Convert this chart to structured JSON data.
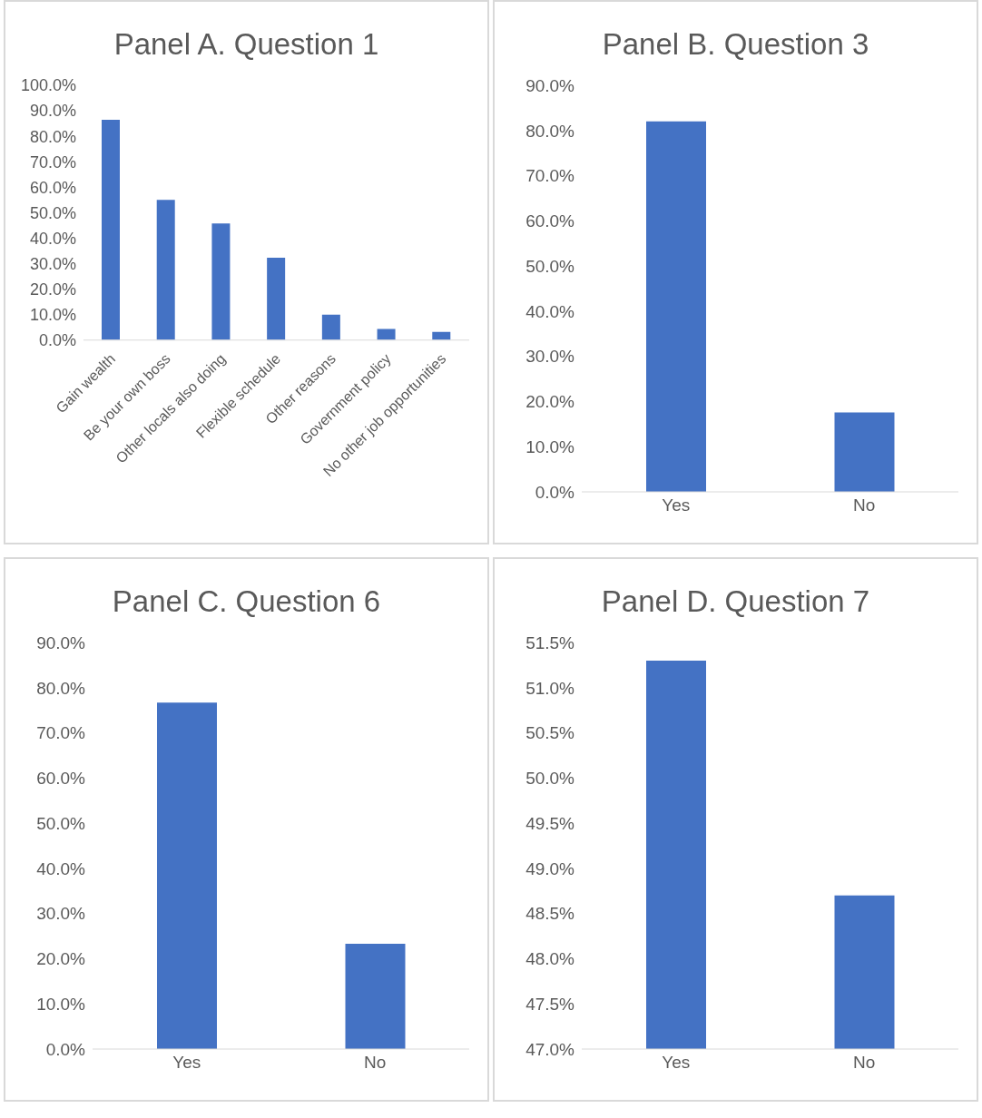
{
  "chart_data": [
    {
      "type": "bar",
      "title": "Panel A. Question 1",
      "categories": [
        "Gain wealth",
        "Be your own boss",
        "Other locals also doing",
        "Flexible schedule",
        "Other reasons",
        "Government policy",
        "No other job opportunities"
      ],
      "values": [
        86.5,
        55.0,
        45.8,
        32.3,
        10.0,
        4.4,
        3.2
      ],
      "color": "#4472c4",
      "ylim": [
        0,
        100
      ],
      "yticks": [
        {
          "value": 0,
          "label": "0.0%"
        },
        {
          "value": 10,
          "label": "10.0%"
        },
        {
          "value": 20,
          "label": "20.0%"
        },
        {
          "value": 30,
          "label": "30.0%"
        },
        {
          "value": 40,
          "label": "40.0%"
        },
        {
          "value": 50,
          "label": "50.0%"
        },
        {
          "value": 60,
          "label": "60.0%"
        },
        {
          "value": 70,
          "label": "70.0%"
        },
        {
          "value": 80,
          "label": "80.0%"
        },
        {
          "value": 90,
          "label": "90.0%"
        },
        {
          "value": 100,
          "label": "100.0%"
        }
      ]
    },
    {
      "type": "bar",
      "title": "Panel B. Question 3",
      "categories": [
        "Yes",
        "No"
      ],
      "values": [
        82.0,
        17.6
      ],
      "color": "#4472c4",
      "ylim": [
        0,
        90
      ],
      "yticks": [
        {
          "value": 0,
          "label": "0.0%"
        },
        {
          "value": 10,
          "label": "10.0%"
        },
        {
          "value": 20,
          "label": "20.0%"
        },
        {
          "value": 30,
          "label": "30.0%"
        },
        {
          "value": 40,
          "label": "40.0%"
        },
        {
          "value": 50,
          "label": "50.0%"
        },
        {
          "value": 60,
          "label": "60.0%"
        },
        {
          "value": 70,
          "label": "70.0%"
        },
        {
          "value": 80,
          "label": "80.0%"
        },
        {
          "value": 90,
          "label": "90.0%"
        }
      ]
    },
    {
      "type": "bar",
      "title": "Panel C. Question 6",
      "categories": [
        "Yes",
        "No"
      ],
      "values": [
        76.7,
        23.3
      ],
      "color": "#4472c4",
      "ylim": [
        0,
        90
      ],
      "yticks": [
        {
          "value": 0,
          "label": "0.0%"
        },
        {
          "value": 10,
          "label": "10.0%"
        },
        {
          "value": 20,
          "label": "20.0%"
        },
        {
          "value": 30,
          "label": "30.0%"
        },
        {
          "value": 40,
          "label": "40.0%"
        },
        {
          "value": 50,
          "label": "50.0%"
        },
        {
          "value": 60,
          "label": "60.0%"
        },
        {
          "value": 70,
          "label": "70.0%"
        },
        {
          "value": 80,
          "label": "80.0%"
        },
        {
          "value": 90,
          "label": "90.0%"
        }
      ]
    },
    {
      "type": "bar",
      "title": "Panel D. Question 7",
      "categories": [
        "Yes",
        "No"
      ],
      "values": [
        51.3,
        48.7
      ],
      "color": "#4472c4",
      "ylim": [
        47,
        51.5
      ],
      "yticks": [
        {
          "value": 47,
          "label": "47.0%"
        },
        {
          "value": 47.5,
          "label": "47.5%"
        },
        {
          "value": 48,
          "label": "48.0%"
        },
        {
          "value": 48.5,
          "label": "48.5%"
        },
        {
          "value": 49,
          "label": "49.0%"
        },
        {
          "value": 49.5,
          "label": "49.5%"
        },
        {
          "value": 50,
          "label": "50.0%"
        },
        {
          "value": 50.5,
          "label": "50.5%"
        },
        {
          "value": 51,
          "label": "51.0%"
        },
        {
          "value": 51.5,
          "label": "51.5%"
        }
      ]
    }
  ]
}
